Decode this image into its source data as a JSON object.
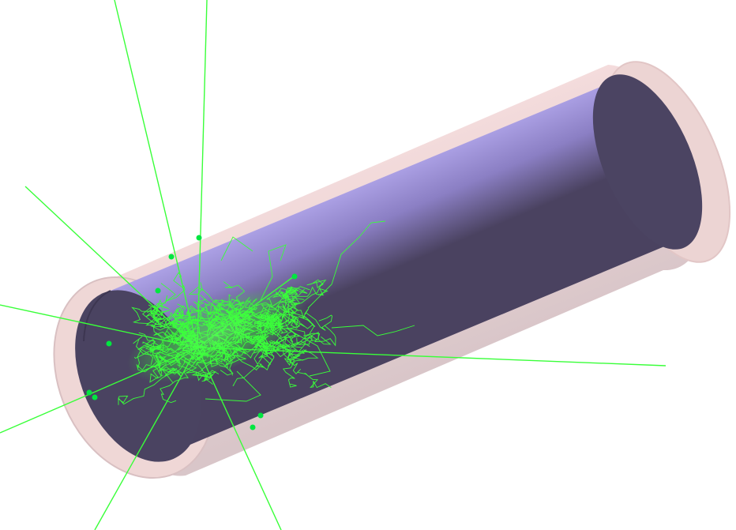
{
  "scene": {
    "background": "#ffffff",
    "colors": {
      "outer_shell": "#f2d6d4",
      "outer_shell_rim": "#ead0cf",
      "inner_cylinder_light": "#a89ce0",
      "inner_cylinder_dark": "#4a4260",
      "inner_end_face": "#4a4361",
      "tracks": "#39ff39",
      "track_points": "#00e640"
    }
  }
}
